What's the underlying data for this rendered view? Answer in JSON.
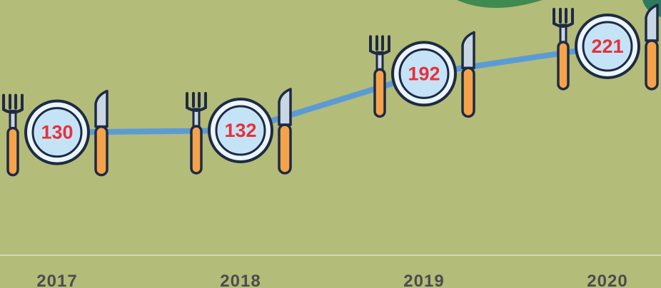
{
  "chart_data": {
    "type": "line",
    "categories": [
      "2017",
      "2018",
      "2019",
      "2020"
    ],
    "values": [
      130,
      132,
      192,
      221
    ],
    "color": "#5b9bd5",
    "ylim": [
      0,
      270
    ]
  }
}
